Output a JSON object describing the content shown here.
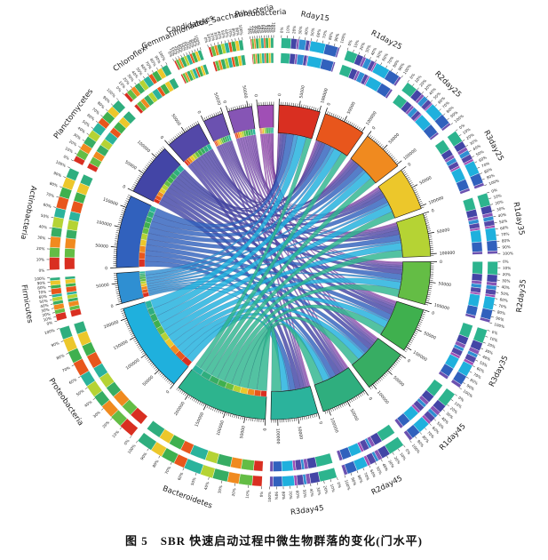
{
  "caption": "图 5　SBR 快速启动过程中微生物群落的变化(门水平)",
  "chart_data": {
    "type": "chord",
    "title": "SBR 快速启动过程中微生物群落的变化(门水平)",
    "description": "Circos chord diagram: microbial community composition (phylum level) across SBR startup samples",
    "unit_scale": 1000,
    "value_tick_step": 50000,
    "value_ticks_shown": [
      "0",
      "50000",
      "100000",
      "150000",
      "200000"
    ],
    "percent_ticks": [
      "0%",
      "10%",
      "20%",
      "30%",
      "40%",
      "50%",
      "60%",
      "70%",
      "80%",
      "90%",
      "100%"
    ],
    "samples": [
      {
        "name": "Rday15",
        "color": "#d92f21"
      },
      {
        "name": "R1day25",
        "color": "#e8561c"
      },
      {
        "name": "R2day25",
        "color": "#f08a1f"
      },
      {
        "name": "R3day25",
        "color": "#ecc72b"
      },
      {
        "name": "R1day35",
        "color": "#b5d334"
      },
      {
        "name": "R2day35",
        "color": "#64bd45"
      },
      {
        "name": "R3day35",
        "color": "#3fb04e"
      },
      {
        "name": "R1day45",
        "color": "#37ad63"
      },
      {
        "name": "R2day45",
        "color": "#2fae7e"
      },
      {
        "name": "R3day45",
        "color": "#2bb39c"
      }
    ],
    "phyla": [
      {
        "name": "Bacteroidetes",
        "color": "#2db48e"
      },
      {
        "name": "Proteobacteria",
        "color": "#1fb0dd"
      },
      {
        "name": "Firmicutes",
        "color": "#2f8fd2"
      },
      {
        "name": "Actinobacteria",
        "color": "#3161bd"
      },
      {
        "name": "Planctomycetes",
        "color": "#4345a6"
      },
      {
        "name": "Chloroflexi",
        "color": "#5348a8"
      },
      {
        "name": "Gemmatimonadetes",
        "color": "#6b51b0"
      },
      {
        "name": "Candidatus_Saccharibacteria",
        "color": "#8655b5"
      },
      {
        "name": "Parcubacteria",
        "color": "#a04fb5"
      }
    ],
    "matrix_units_of_1000_reads": [
      [
        17,
        19,
        20,
        21,
        22,
        23,
        24,
        26,
        28,
        30
      ],
      [
        26,
        25,
        24,
        23,
        22,
        22,
        21,
        21,
        20,
        21
      ],
      [
        12,
        10,
        9,
        8,
        7,
        7,
        6,
        6,
        5,
        5
      ],
      [
        22,
        20,
        19,
        18,
        18,
        17,
        17,
        16,
        17,
        16
      ],
      [
        10,
        11,
        12,
        12,
        13,
        13,
        14,
        14,
        15,
        16
      ],
      [
        6,
        7,
        8,
        9,
        9,
        9,
        10,
        10,
        11,
        11
      ],
      [
        3,
        4,
        4,
        5,
        5,
        5,
        6,
        6,
        6,
        6
      ],
      [
        4,
        5,
        5,
        6,
        6,
        6,
        7,
        7,
        7,
        7
      ],
      [
        2,
        3,
        3,
        4,
        4,
        4,
        5,
        5,
        5,
        5
      ]
    ],
    "layout": {
      "samples_side": "right half, clockwise from top",
      "phyla_side": "left half, clockwise from bottom to top",
      "gap_deg": 2,
      "start_deg": 2,
      "rings": "outer percent ring + inner segment ring per sector, grid off, no legend"
    }
  }
}
